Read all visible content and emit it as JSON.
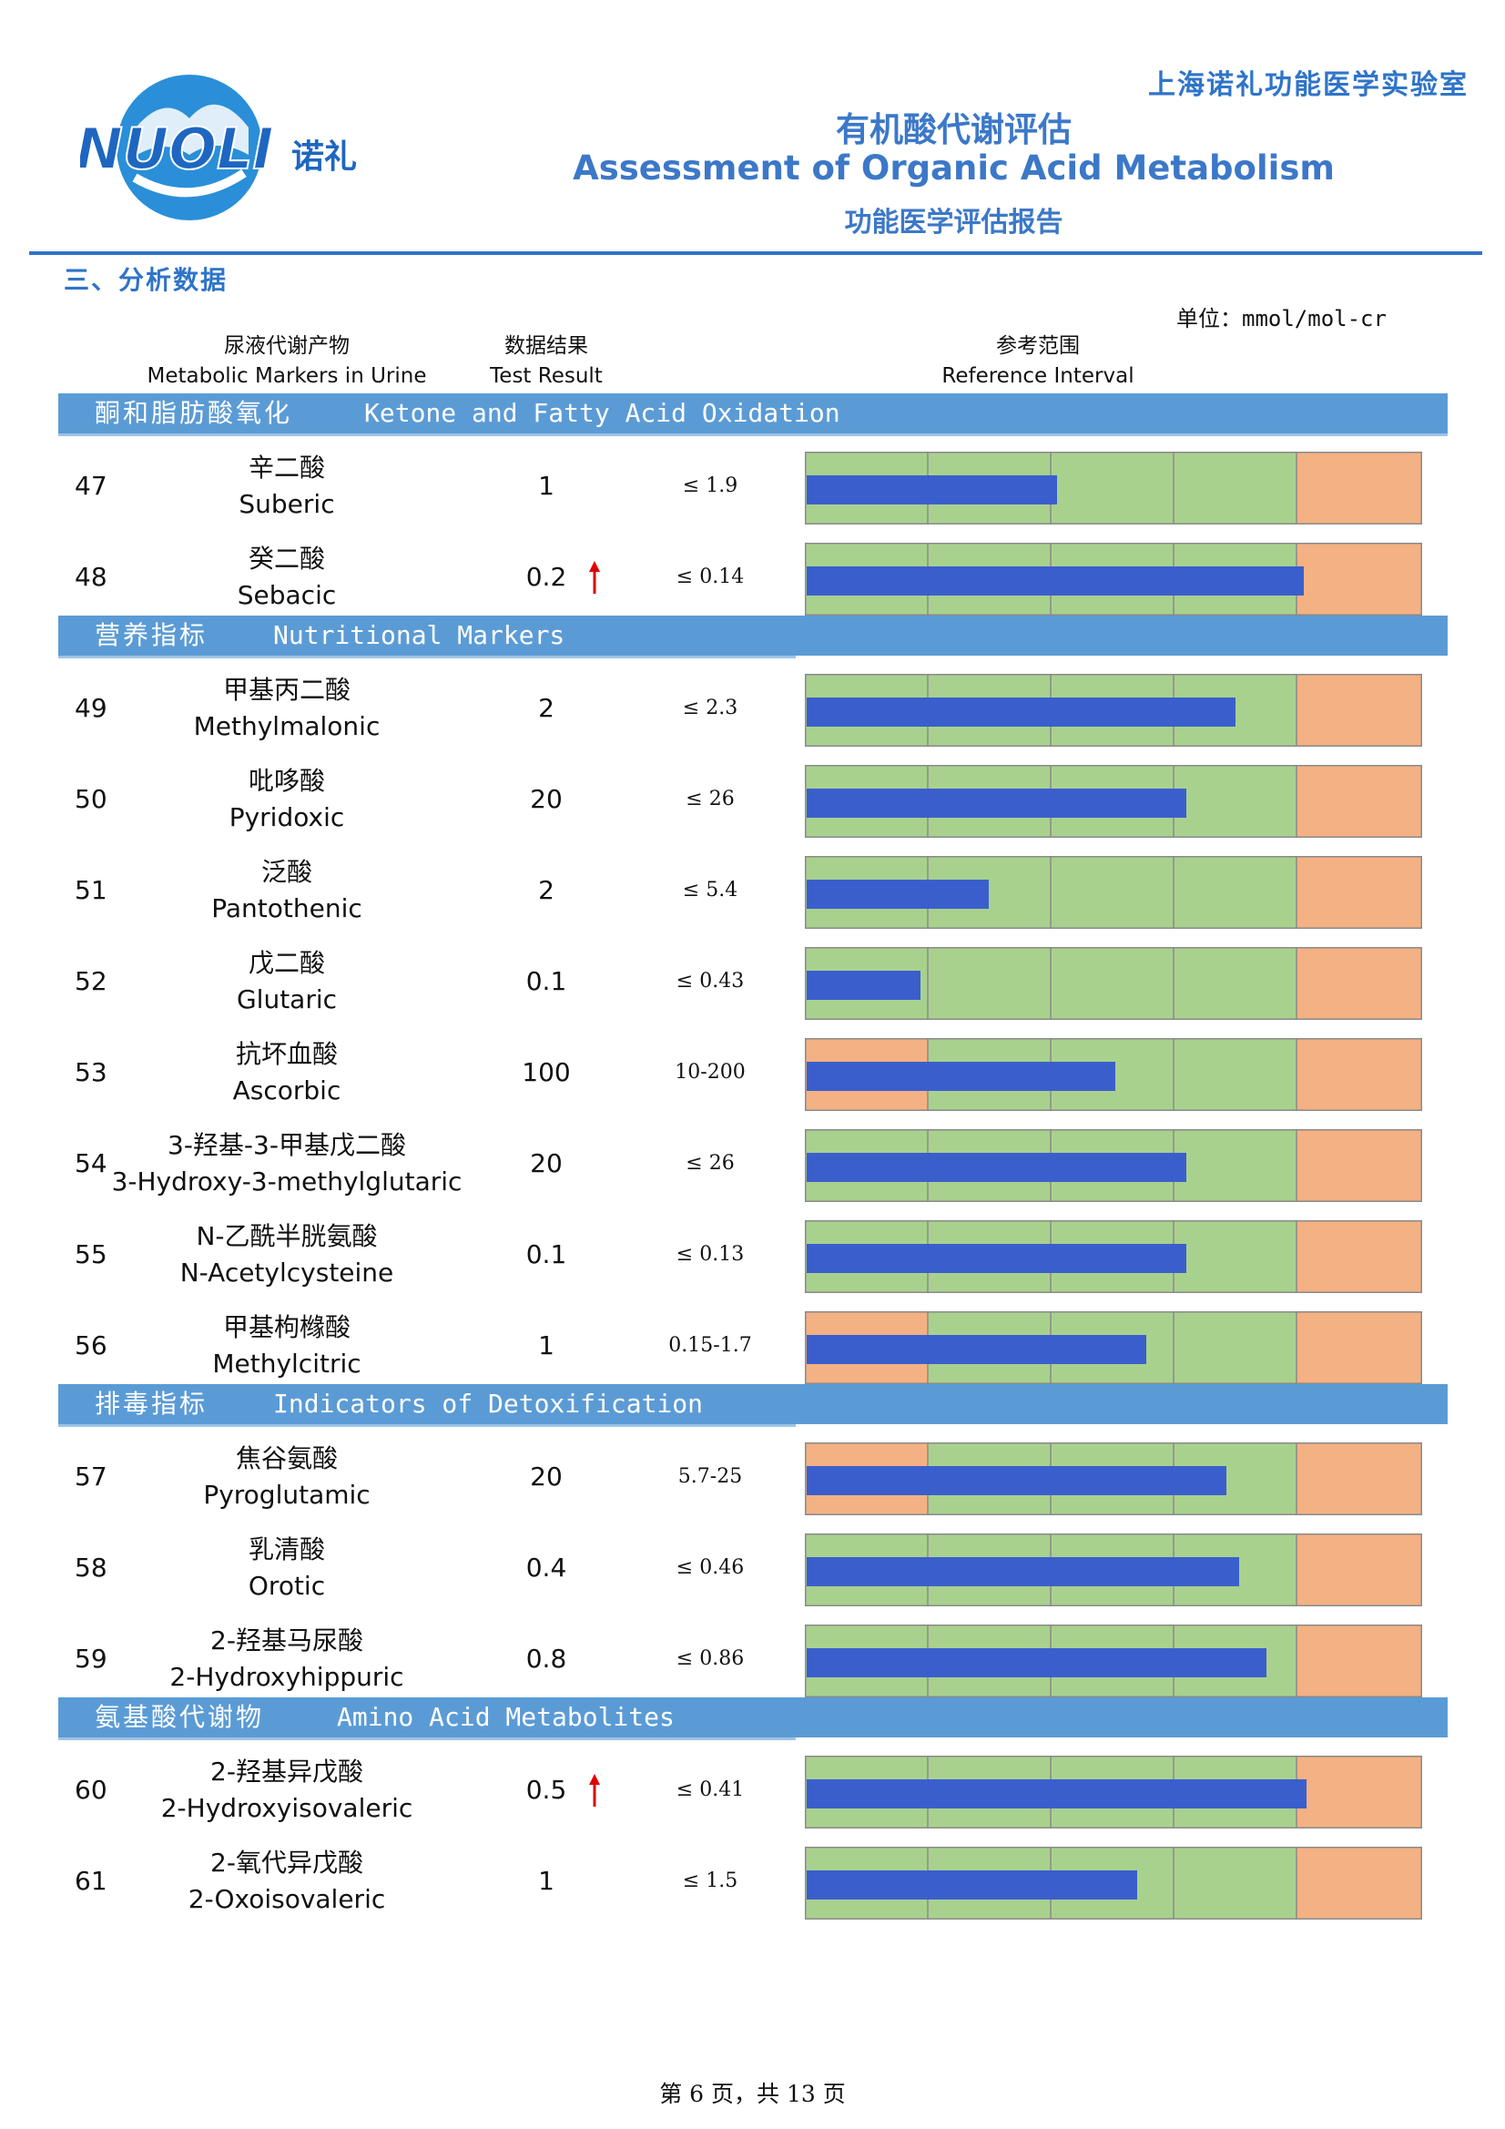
{
  "header": {
    "logo_text": "NUOLI",
    "logo_cn": "诺礼",
    "lab_name": "上海诺礼功能医学实验室",
    "title_cn": "有机酸代谢评估",
    "title_en": "Assessment of Organic Acid Metabolism",
    "subtitle": "功能医学评估报告"
  },
  "section_title": "三、分析数据",
  "unit": "单位：mmol/mol-cr",
  "columns": {
    "marker_cn": "尿液代谢产物",
    "marker_en": "Metabolic Markers in Urine",
    "result_cn": "数据结果",
    "result_en": "Test Result",
    "ref_cn": "参考范围",
    "ref_en": "Reference Interval"
  },
  "categories": [
    {
      "cn": "酮和脂肪酸氧化",
      "en": "Ketone and Fatty Acid Oxidation",
      "rows": [
        {
          "idx": "47",
          "cn": "辛二酸",
          "en": "Suberic",
          "value": "1",
          "high": false,
          "ref": "≤ 1.9",
          "bar": 0.405
        },
        {
          "idx": "48",
          "cn": "癸二酸",
          "en": "Sebacic",
          "value": "0.2",
          "high": true,
          "ref": "≤ 0.14",
          "bar": 0.805
        }
      ]
    },
    {
      "cn": "营养指标",
      "en": "Nutritional Markers",
      "rows": [
        {
          "idx": "49",
          "cn": "甲基丙二酸",
          "en": "Methylmalonic",
          "value": "2",
          "high": false,
          "ref": "≤ 2.3",
          "bar": 0.695
        },
        {
          "idx": "50",
          "cn": "吡哆酸",
          "en": "Pyridoxic",
          "value": "20",
          "high": false,
          "ref": "≤ 26",
          "bar": 0.615
        },
        {
          "idx": "51",
          "cn": "泛酸",
          "en": "Pantothenic",
          "value": "2",
          "high": false,
          "ref": "≤ 5.4",
          "bar": 0.295
        },
        {
          "idx": "52",
          "cn": "戊二酸",
          "en": "Glutaric",
          "value": "0.1",
          "high": false,
          "ref": "≤ 0.43",
          "bar": 0.185
        },
        {
          "idx": "53",
          "cn": "抗坏血酸",
          "en": "Ascorbic",
          "value": "100",
          "high": false,
          "ref": "10-200",
          "bar": 0.5,
          "low_zone": true
        },
        {
          "idx": "54",
          "cn": "3-羟基-3-甲基戊二酸",
          "en": "3-Hydroxy-3-methylglutaric",
          "value": "20",
          "high": false,
          "ref": "≤ 26",
          "bar": 0.615
        },
        {
          "idx": "55",
          "cn": "N-乙酰半胱氨酸",
          "en": "N-Acetylcysteine",
          "value": "0.1",
          "high": false,
          "ref": "≤ 0.13",
          "bar": 0.615
        },
        {
          "idx": "56",
          "cn": "甲基枸橼酸",
          "en": "Methylcitric",
          "value": "1",
          "high": false,
          "ref": "0.15-1.7",
          "bar": 0.55,
          "low_zone": true
        }
      ]
    },
    {
      "cn": "排毒指标",
      "en": "Indicators of Detoxification",
      "rows": [
        {
          "idx": "57",
          "cn": "焦谷氨酸",
          "en": "Pyroglutamic",
          "value": "20",
          "high": false,
          "ref": "5.7-25",
          "bar": 0.68,
          "low_zone": true
        },
        {
          "idx": "58",
          "cn": "乳清酸",
          "en": "Orotic",
          "value": "0.4",
          "high": false,
          "ref": "≤ 0.46",
          "bar": 0.7
        },
        {
          "idx": "59",
          "cn": "2-羟基马尿酸",
          "en": "2-Hydroxyhippuric",
          "value": "0.8",
          "high": false,
          "ref": "≤ 0.86",
          "bar": 0.745
        }
      ]
    },
    {
      "cn": "氨基酸代谢物",
      "en": "Amino Acid Metabolites",
      "rows": [
        {
          "idx": "60",
          "cn": "2-羟基异戊酸",
          "en": "2-Hydroxyisovaleric",
          "value": "0.5",
          "high": true,
          "ref": "≤ 0.41",
          "bar": 0.81
        },
        {
          "idx": "61",
          "cn": "2-氧代异戊酸",
          "en": "2-Oxoisovaleric",
          "value": "1",
          "high": false,
          "ref": "≤ 1.5",
          "bar": 0.535
        }
      ]
    }
  ],
  "colors": {
    "category_bar": "#5b9bd5",
    "green_zone": "#a9d18e",
    "red_zone": "#f4b183",
    "result_bar": "#3a5fcd",
    "high_arrow": "#e00000"
  },
  "footer": "第 6 页，共 13 页"
}
